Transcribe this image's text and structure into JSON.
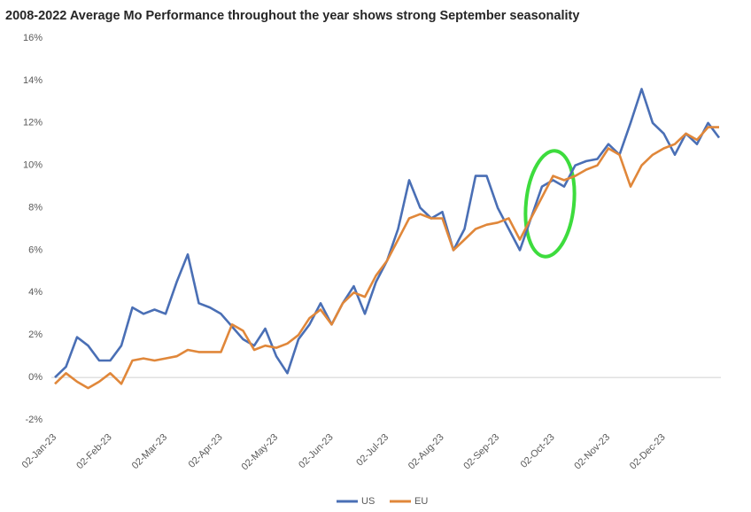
{
  "chart_data": {
    "type": "line",
    "title": "2008-2022 Average Mo Performance throughout the year shows strong September seasonality",
    "categories": [
      "02-Jan-23",
      null,
      null,
      null,
      null,
      "02-Feb-23",
      null,
      null,
      null,
      null,
      "02-Mar-23",
      null,
      null,
      null,
      null,
      "02-Apr-23",
      null,
      null,
      null,
      null,
      "02-May-23",
      null,
      null,
      null,
      null,
      "02-Jun-23",
      null,
      null,
      null,
      null,
      "02-Jul-23",
      null,
      null,
      null,
      null,
      "02-Aug-23",
      null,
      null,
      null,
      null,
      "02-Sep-23",
      null,
      null,
      null,
      null,
      "02-Oct-23",
      null,
      null,
      null,
      null,
      "02-Nov-23",
      null,
      null,
      null,
      null,
      "02-Dec-23",
      null,
      null,
      null,
      null,
      null
    ],
    "series": [
      {
        "name": "US",
        "color": "#4a6fb5",
        "values": [
          0,
          0.5,
          1.9,
          1.5,
          0.8,
          0.8,
          1.5,
          3.3,
          3.0,
          3.2,
          3.0,
          4.5,
          5.8,
          3.5,
          3.3,
          3.0,
          2.4,
          1.8,
          1.5,
          2.3,
          1.0,
          0.2,
          1.8,
          2.5,
          3.5,
          2.5,
          3.5,
          4.3,
          3.0,
          4.5,
          5.5,
          7.0,
          9.3,
          8.0,
          7.5,
          7.8,
          6.0,
          7.0,
          9.5,
          9.5,
          8.0,
          7.0,
          6.0,
          7.5,
          9.0,
          9.3,
          9.0,
          10.0,
          10.2,
          10.3,
          11.0,
          10.5,
          12.0,
          13.6,
          12.0,
          11.5,
          10.5,
          11.5,
          11.0,
          12.0,
          11.3
        ]
      },
      {
        "name": "EU",
        "color": "#e0873a",
        "values": [
          -0.3,
          0.2,
          -0.2,
          -0.5,
          -0.2,
          0.2,
          -0.3,
          0.8,
          0.9,
          0.8,
          0.9,
          1.0,
          1.3,
          1.2,
          1.2,
          1.2,
          2.5,
          2.2,
          1.3,
          1.5,
          1.4,
          1.6,
          2.0,
          2.8,
          3.2,
          2.5,
          3.5,
          4.0,
          3.8,
          4.8,
          5.5,
          6.5,
          7.5,
          7.7,
          7.5,
          7.5,
          6.0,
          6.5,
          7.0,
          7.2,
          7.3,
          7.5,
          6.5,
          7.5,
          8.5,
          9.5,
          9.3,
          9.5,
          9.8,
          10.0,
          10.8,
          10.5,
          9.0,
          10.0,
          10.5,
          10.8,
          11.0,
          11.5,
          11.2,
          11.8,
          11.8
        ]
      }
    ],
    "ylim": [
      -2,
      16
    ],
    "yticks": [
      {
        "value": -2,
        "label": "-2%"
      },
      {
        "value": 0,
        "label": "0%"
      },
      {
        "value": 2,
        "label": "2%"
      },
      {
        "value": 4,
        "label": "4%"
      },
      {
        "value": 6,
        "label": "6%"
      },
      {
        "value": 8,
        "label": "8%"
      },
      {
        "value": 10,
        "label": "10%"
      },
      {
        "value": 12,
        "label": "12%"
      },
      {
        "value": 14,
        "label": "14%"
      },
      {
        "value": 16,
        "label": "16%"
      }
    ],
    "grid": false,
    "legend": "bottom"
  }
}
